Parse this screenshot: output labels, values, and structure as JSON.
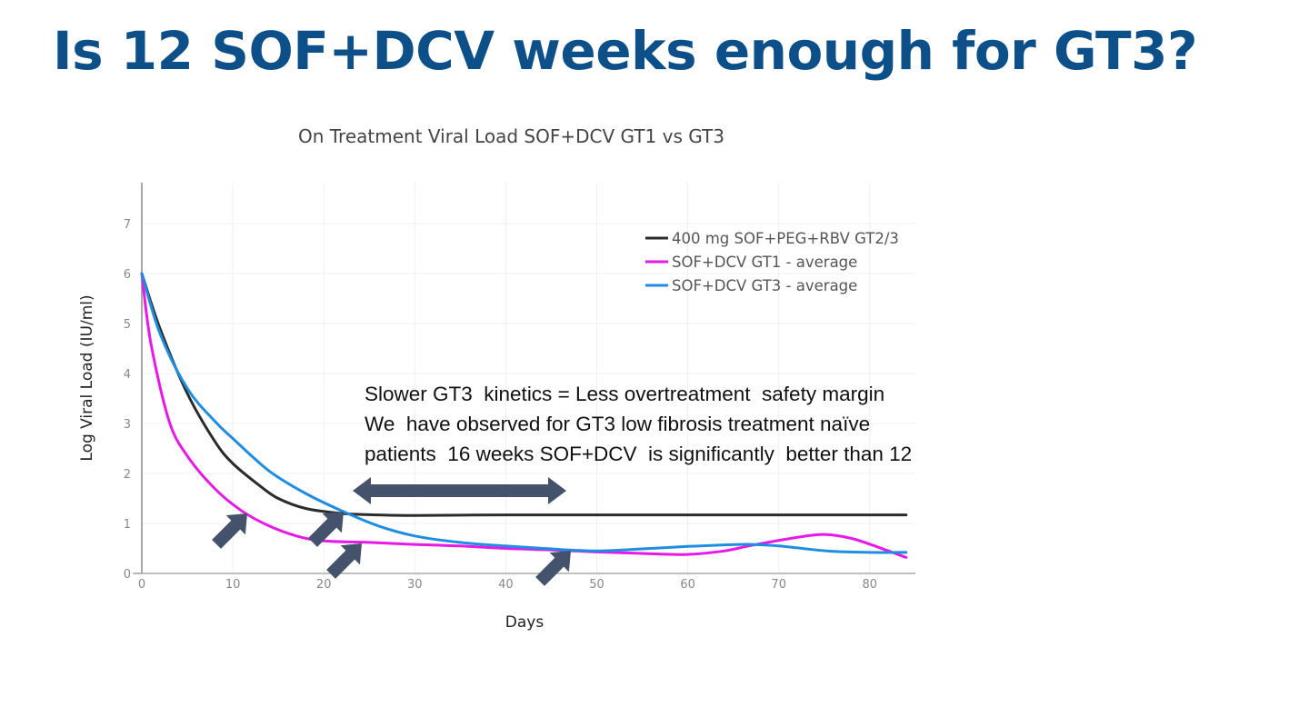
{
  "slide": {
    "title": "Is 12 SOF+DCV weeks enough for GT3?",
    "annotation_lines": [
      "Slower GT3  kinetics = Less overtreatment  safety margin",
      "We  have observed for GT3 low fibrosis treatment naïve",
      "patients  16 weeks SOF+DCV  is significantly  better than 12"
    ]
  },
  "chart_data": {
    "type": "line",
    "title": "On Treatment Viral Load SOF+DCV GT1 vs GT3",
    "xlabel": "Days",
    "ylabel": "Log Viral Load (IU/ml)",
    "xlim": [
      0,
      84
    ],
    "ylim": [
      0,
      7.8
    ],
    "xticks": [
      0,
      10,
      20,
      30,
      40,
      50,
      60,
      70,
      80
    ],
    "yticks": [
      0,
      1,
      2,
      3,
      4,
      5,
      6,
      7
    ],
    "grid": true,
    "legend_position": "top-right",
    "series": [
      {
        "name": "400 mg SOF+PEG+RBV GT2/3",
        "color": "#2b2b2b",
        "x": [
          0,
          2,
          5,
          8,
          10,
          13,
          15,
          18,
          22,
          26,
          30,
          40,
          50,
          60,
          70,
          84
        ],
        "y": [
          6.0,
          4.9,
          3.6,
          2.65,
          2.2,
          1.75,
          1.5,
          1.3,
          1.2,
          1.17,
          1.16,
          1.17,
          1.17,
          1.17,
          1.17,
          1.17
        ]
      },
      {
        "name": "SOF+DCV GT1 - average",
        "color": "#e619e6",
        "x": [
          0,
          1,
          3,
          5,
          8,
          11,
          14,
          17,
          20,
          25,
          30,
          35,
          40,
          45,
          50,
          55,
          60,
          64,
          67,
          72,
          75,
          78,
          81,
          84
        ],
        "y": [
          6.0,
          4.6,
          3.05,
          2.35,
          1.7,
          1.25,
          0.95,
          0.75,
          0.65,
          0.62,
          0.58,
          0.55,
          0.5,
          0.47,
          0.43,
          0.4,
          0.38,
          0.45,
          0.56,
          0.72,
          0.78,
          0.7,
          0.52,
          0.32
        ]
      },
      {
        "name": "SOF+DCV GT3 - average",
        "color": "#1f8de0",
        "x": [
          0,
          2,
          5,
          8,
          10,
          14,
          18,
          22,
          26,
          30,
          35,
          40,
          45,
          50,
          55,
          60,
          64,
          67,
          70,
          73,
          76,
          80,
          84
        ],
        "y": [
          6.0,
          4.8,
          3.7,
          3.05,
          2.7,
          2.05,
          1.6,
          1.25,
          0.95,
          0.75,
          0.62,
          0.55,
          0.49,
          0.45,
          0.49,
          0.54,
          0.57,
          0.58,
          0.55,
          0.49,
          0.44,
          0.42,
          0.42
        ]
      }
    ],
    "annotations": {
      "pointer_arrows_at_day": [
        11,
        22,
        24,
        47
      ],
      "bracket_arrow_days": [
        23,
        47
      ]
    }
  }
}
